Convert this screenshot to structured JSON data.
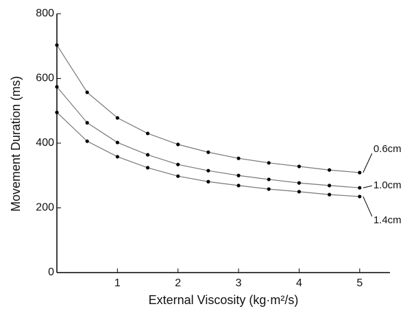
{
  "chart_data": {
    "type": "line",
    "x_label": "External Viscosity (kg·m²/s)",
    "y_label": "Movement Duration (ms)",
    "x": [
      0,
      0.5,
      1,
      1.5,
      2,
      2.5,
      3,
      3.5,
      4,
      4.5,
      5
    ],
    "series": [
      {
        "name": "0.6cm",
        "color": "#777777",
        "values": [
          703,
          557,
          478,
          430,
          396,
          372,
          353,
          339,
          328,
          317,
          309
        ]
      },
      {
        "name": "1.0cm",
        "color": "#777777",
        "values": [
          574,
          463,
          402,
          364,
          334,
          315,
          300,
          288,
          277,
          269,
          262
        ]
      },
      {
        "name": "1.4cm",
        "color": "#777777",
        "values": [
          495,
          406,
          358,
          324,
          298,
          281,
          269,
          258,
          250,
          241,
          235
        ]
      }
    ],
    "xlim": [
      0,
      5.5
    ],
    "ylim": [
      0,
      800
    ],
    "xticks": [
      1,
      2,
      3,
      4,
      5
    ],
    "yticks": [
      0,
      200,
      400,
      600,
      800
    ]
  }
}
